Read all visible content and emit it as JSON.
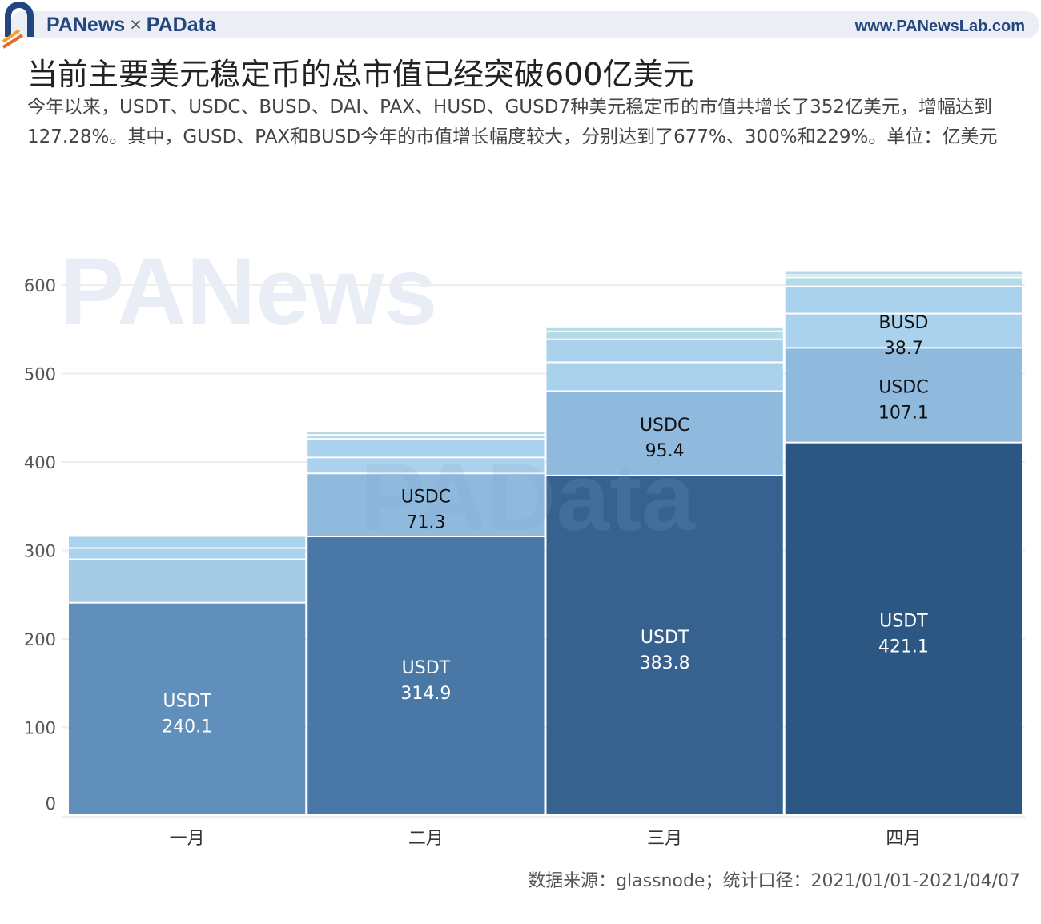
{
  "header": {
    "brand_left": "PANews",
    "brand_sep": "×",
    "brand_right": "PAData",
    "website": "www.PANewsLab.com"
  },
  "watermarks": [
    "PANews",
    "PAData"
  ],
  "colors": {
    "usdt": [
      "#5f8fba",
      "#4a78a6",
      "#37628f",
      "#2c5782"
    ],
    "usdc": "#8fbade",
    "usdc_jan": "#a3cbe6",
    "other": "#abd2ec",
    "top": "#b6dbe6",
    "grid": "#eeeeee",
    "axis_text": "#555555"
  },
  "chart_data": {
    "type": "bar",
    "stacked": true,
    "title": "当前主要美元稳定币的总市值已经突破600亿美元",
    "subtitle": "今年以来，USDT、USDC、BUSD、DAI、PAX、HUSD、GUSD7种美元稳定币的市值共增长了352亿美元，增幅达到127.28%。其中，GUSD、PAX和BUSD今年的市值增长幅度较大，分别达到了677%、300%和229%。单位：亿美元",
    "categories": [
      "一月",
      "二月",
      "三月",
      "四月"
    ],
    "ylim": [
      0,
      620
    ],
    "yticks": [
      0,
      100,
      200,
      300,
      400,
      500,
      600
    ],
    "grid": true,
    "xlabel": "",
    "ylabel": "",
    "series": [
      {
        "name": "USDT",
        "values": [
          240.1,
          314.9,
          383.8,
          421.1
        ],
        "labels": [
          true,
          true,
          true,
          true
        ]
      },
      {
        "name": "USDC",
        "values": [
          49,
          71.3,
          95.4,
          107.1
        ],
        "labels": [
          false,
          true,
          true,
          true
        ]
      },
      {
        "name": "BUSD",
        "values": [
          12.7,
          18,
          32.6,
          38.7
        ],
        "labels": [
          false,
          false,
          false,
          true
        ]
      },
      {
        "values": [
          13.6,
          21,
          26,
          30.8
        ]
      },
      {
        "values": [
          0,
          4.5,
          9,
          10
        ]
      },
      {
        "values": [
          0,
          4.5,
          4.5,
          2.7
        ]
      },
      {
        "values": [
          0,
          0,
          0,
          4.5
        ]
      }
    ],
    "value_labels": [
      [
        "240.1",
        "314.9",
        "383.8",
        "421.1"
      ],
      [
        "",
        "71.3",
        "95.4",
        "107.1"
      ],
      [
        "",
        "",
        "",
        "38.7"
      ]
    ],
    "source": "数据来源：glassnode；统计口径：2021/01/01-2021/04/07"
  }
}
